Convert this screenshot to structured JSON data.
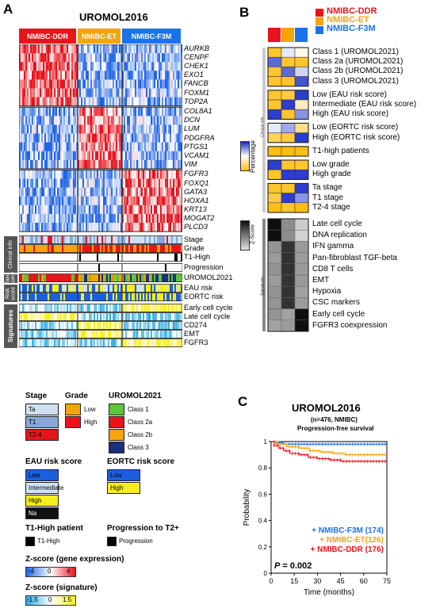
{
  "panel_a": {
    "letter": "A",
    "title": "UROMOL2016",
    "groups": [
      {
        "label": "NMIBC-DDR",
        "color": "#e8141b"
      },
      {
        "label": "NMIBC-ET",
        "color": "#f5a40a"
      },
      {
        "label": "NMIBC-F3M",
        "color": "#1a73e8"
      }
    ],
    "gene_blocks": [
      {
        "genes": [
          "AURKB",
          "CENPF",
          "CHEK1",
          "EXO1",
          "FANCB",
          "FOXM1",
          "TOP2A"
        ],
        "high_group": 0
      },
      {
        "genes": [
          "COL8A1",
          "DCN",
          "LUM",
          "PDGFRA",
          "PTGS1",
          "VCAM1",
          "VIM"
        ],
        "high_group": 1
      },
      {
        "genes": [
          "FGFR3",
          "FOXQ1",
          "GATA3",
          "HOXA1",
          "KRT13",
          "MOGAT2",
          "PLCD3"
        ],
        "high_group": 2
      }
    ],
    "clinical_rows": [
      "Stage",
      "Grade",
      "T1-High",
      "Progression"
    ],
    "clinical_side": "Clinical info",
    "taxo_rows": [
      "UROMOL2021"
    ],
    "taxo_side": "Taxo nomy",
    "risk_rows": [
      "EAU risk",
      "EORTC risk"
    ],
    "risk_side": "Risk score",
    "sig_rows": [
      "Early cell cycle",
      "Late cell cycle",
      "CD274",
      "EMT",
      "FGFR3"
    ],
    "sig_side": "Signatures"
  },
  "legends": {
    "stage": {
      "title": "Stage",
      "items": [
        {
          "label": "Ta",
          "color": "#cfe0f0"
        },
        {
          "label": "T1",
          "color": "#8aa8d6"
        },
        {
          "label": "T2-4",
          "color": "#e8141b"
        }
      ]
    },
    "grade": {
      "title": "Grade",
      "items": [
        {
          "label": "Low",
          "color": "#f5a40a"
        },
        {
          "label": "High",
          "color": "#e8141b"
        }
      ]
    },
    "uromol2021": {
      "title": "UROMOL2021",
      "items": [
        {
          "label": "Class 1",
          "color": "#5ec43a"
        },
        {
          "label": "Class 2a",
          "color": "#e8141b"
        },
        {
          "label": "Class 2b",
          "color": "#f5a40a"
        },
        {
          "label": "Class 3",
          "color": "#1b2f7a"
        }
      ]
    },
    "eau": {
      "title": "EAU risk score",
      "items": [
        {
          "label": "Low",
          "color": "#1a5fe0"
        },
        {
          "label": "Intermediate",
          "color": "#cfe3f2"
        },
        {
          "label": "High",
          "color": "#f6ee1c"
        },
        {
          "label": "Na",
          "color": "#111111"
        }
      ]
    },
    "eortc": {
      "title": "EORTC risk score",
      "items": [
        {
          "label": "Low",
          "color": "#1a5fe0"
        },
        {
          "label": "High",
          "color": "#f6ee1c"
        }
      ]
    },
    "t1high": {
      "title": "T1-High patient",
      "items": [
        {
          "label": "T1-High",
          "color": "#000000"
        }
      ]
    },
    "progression": {
      "title": "Progression to T2+",
      "items": [
        {
          "label": "Progression",
          "color": "#000000"
        }
      ]
    },
    "zgene": {
      "title": "Z-score (gene expression)",
      "ticks": [
        "-4",
        "0",
        "4"
      ]
    },
    "zsig": {
      "title": "Z-score (signature)",
      "ticks": [
        "-1.5",
        "0",
        "1.5"
      ]
    }
  },
  "panel_b": {
    "letter": "B",
    "legend": [
      {
        "label": "NMIBC-DDR",
        "color": "#e8141b"
      },
      {
        "label": "NMIBC-ET",
        "color": "#f5a40a"
      },
      {
        "label": "NMIBC-F3M",
        "color": "#1a73e8"
      }
    ],
    "clinical_side": "Clinical info",
    "percentage_label": "Percentage",
    "zscore_label": "Z-Score",
    "signatures_side": "Signatures",
    "scale_ticks_pct": [
      "1",
      "0"
    ],
    "scale_ticks_z": [
      "1.5",
      "-1.5"
    ],
    "clinical_blocks": [
      {
        "rows": [
          {
            "label": "Class 1 (UROMOL2021)",
            "values": [
              0.05,
              0.55,
              0.45
            ]
          },
          {
            "label": "Class 2a (UROMOL2021)",
            "values": [
              0.85,
              0.05,
              0.05
            ]
          },
          {
            "label": "Class 2b (UROMOL2021)",
            "values": [
              0.05,
              0.85,
              0.6
            ]
          },
          {
            "label": "Class 3 (UROMOL2021)",
            "values": [
              0.05,
              0.05,
              0.9
            ]
          }
        ]
      },
      {
        "rows": [
          {
            "label": "Low (EAU risk score)",
            "values": [
              0.05,
              0.1,
              0.95
            ]
          },
          {
            "label": "Intermediate (EAU risk score)",
            "values": [
              0.05,
              0.95,
              0.35
            ]
          },
          {
            "label": "High (EAU risk score)",
            "values": [
              0.95,
              0.05,
              0.75
            ]
          }
        ]
      },
      {
        "rows": [
          {
            "label": "Low (EORTC risk score)",
            "values": [
              0.55,
              0.7,
              0.25
            ]
          },
          {
            "label": "High (EORTC risk score)",
            "values": [
              0.15,
              0.1,
              0.95
            ]
          }
        ]
      },
      {
        "rows": [
          {
            "label": "T1-high patients",
            "values": [
              0.0,
              0.0,
              0.0
            ]
          }
        ]
      },
      {
        "rows": [
          {
            "label": "Low grade",
            "values": [
              0.95,
              0.05,
              0.05
            ]
          },
          {
            "label": "High grade",
            "values": [
              0.05,
              0.95,
              0.95
            ]
          }
        ]
      },
      {
        "rows": [
          {
            "label": "Ta stage",
            "values": [
              0.05,
              0.05,
              0.95
            ]
          },
          {
            "label": "T1 stage",
            "values": [
              0.1,
              0.95,
              0.75
            ]
          },
          {
            "label": "T2-4 stage",
            "values": [
              0.0,
              0.05,
              0.0
            ]
          }
        ]
      }
    ],
    "signature_rows": [
      {
        "label": "Late cell cycle",
        "values": [
          1.5,
          -0.3,
          -1.2
        ]
      },
      {
        "label": "DNA replication",
        "values": [
          1.5,
          -0.3,
          -1.3
        ]
      },
      {
        "label": "IFN gamma",
        "values": [
          -0.4,
          1.0,
          -0.5
        ]
      },
      {
        "label": "Pan-fibroblast TGF-beta",
        "values": [
          -0.5,
          1.0,
          -0.5
        ]
      },
      {
        "label": "CD8 T cells",
        "values": [
          -0.4,
          1.0,
          -0.5
        ]
      },
      {
        "label": "EMT",
        "values": [
          -0.5,
          1.0,
          -0.5
        ]
      },
      {
        "label": "Hypoxia",
        "values": [
          -0.4,
          1.0,
          -0.6
        ]
      },
      {
        "label": "CSC markers",
        "values": [
          -0.4,
          1.0,
          -0.5
        ]
      },
      {
        "label": "Early cell cycle",
        "values": [
          -0.4,
          -0.6,
          1.5
        ]
      },
      {
        "label": "FGFR3 coexpression",
        "values": [
          -0.6,
          -0.5,
          1.5
        ]
      }
    ]
  },
  "panel_c": {
    "letter": "C",
    "title": "UROMOL2016",
    "subtitle1": "(n=476, NMIBC)",
    "subtitle2": "Progression-free survival",
    "ylabel": "Probability",
    "xlabel": "Time (months)",
    "pvalue_prefix": "P",
    "pvalue_text": " = 0.002",
    "chart_data": {
      "type": "line",
      "title": "UROMOL2016",
      "xlabel": "Time (months)",
      "ylabel": "Probability",
      "xlim": [
        0,
        75
      ],
      "ylim": [
        0.0,
        1.0
      ],
      "xticks": [
        0,
        15,
        30,
        45,
        60,
        75
      ],
      "yticks": [
        0,
        0.2,
        0.4,
        0.6,
        0.8,
        1
      ],
      "ytick_labels": [
        "0",
        "0.2",
        "0.4",
        "0.6",
        "0.8",
        "1"
      ],
      "series": [
        {
          "name": "NMIBC-F3M (174)",
          "color": "#1a73e8",
          "x": [
            0,
            3,
            8,
            75
          ],
          "y": [
            1.0,
            0.99,
            0.98,
            0.98
          ]
        },
        {
          "name": "NMIBC-ET(126)",
          "color": "#f5a40a",
          "x": [
            0,
            4,
            10,
            18,
            25,
            32,
            40,
            48,
            75
          ],
          "y": [
            1.0,
            0.98,
            0.96,
            0.95,
            0.93,
            0.92,
            0.91,
            0.9,
            0.9
          ]
        },
        {
          "name": "NMIBC-DDR (176)",
          "color": "#e8141b",
          "x": [
            0,
            2,
            5,
            8,
            12,
            18,
            24,
            30,
            38,
            45,
            75
          ],
          "y": [
            1.0,
            0.97,
            0.95,
            0.93,
            0.91,
            0.9,
            0.88,
            0.87,
            0.86,
            0.85,
            0.85
          ]
        }
      ]
    }
  }
}
